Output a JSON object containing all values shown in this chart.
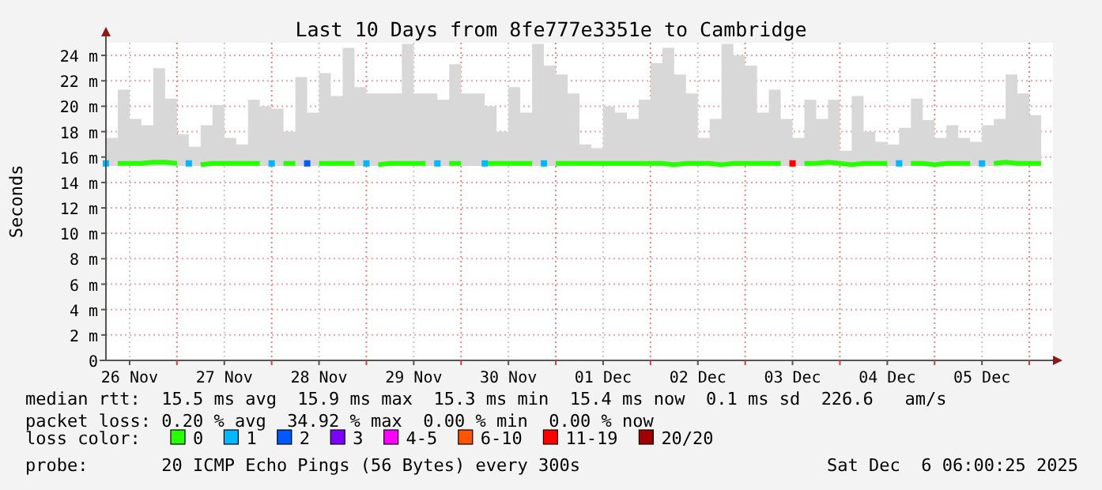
{
  "chart_data": {
    "type": "line",
    "title": "Last 10 Days from 8fe777e3351e to Cambridge",
    "ylabel": "Seconds",
    "x": [
      "2025-11-26T06:00",
      "2025-11-26T09:00",
      "2025-11-26T12:00",
      "2025-11-26T15:00",
      "2025-11-26T18:00",
      "2025-11-26T21:00",
      "2025-11-27T00:00",
      "2025-11-27T03:00",
      "2025-11-27T06:00",
      "2025-11-27T09:00",
      "2025-11-27T12:00",
      "2025-11-27T15:00",
      "2025-11-27T18:00",
      "2025-11-27T21:00",
      "2025-11-28T00:00",
      "2025-11-28T03:00",
      "2025-11-28T06:00",
      "2025-11-28T09:00",
      "2025-11-28T12:00",
      "2025-11-28T15:00",
      "2025-11-28T18:00",
      "2025-11-28T21:00",
      "2025-11-29T00:00",
      "2025-11-29T03:00",
      "2025-11-29T06:00",
      "2025-11-29T09:00",
      "2025-11-29T12:00",
      "2025-11-29T15:00",
      "2025-11-29T18:00",
      "2025-11-29T21:00",
      "2025-11-30T00:00",
      "2025-11-30T03:00",
      "2025-11-30T06:00",
      "2025-11-30T09:00",
      "2025-11-30T12:00",
      "2025-11-30T15:00",
      "2025-11-30T18:00",
      "2025-11-30T21:00",
      "2025-12-01T00:00",
      "2025-12-01T03:00",
      "2025-12-01T06:00",
      "2025-12-01T09:00",
      "2025-12-01T12:00",
      "2025-12-01T15:00",
      "2025-12-01T18:00",
      "2025-12-01T21:00",
      "2025-12-02T00:00",
      "2025-12-02T03:00",
      "2025-12-02T06:00",
      "2025-12-02T09:00",
      "2025-12-02T12:00",
      "2025-12-02T15:00",
      "2025-12-02T18:00",
      "2025-12-02T21:00",
      "2025-12-03T00:00",
      "2025-12-03T03:00",
      "2025-12-03T06:00",
      "2025-12-03T09:00",
      "2025-12-03T12:00",
      "2025-12-03T15:00",
      "2025-12-03T18:00",
      "2025-12-03T21:00",
      "2025-12-04T00:00",
      "2025-12-04T03:00",
      "2025-12-04T06:00",
      "2025-12-04T09:00",
      "2025-12-04T12:00",
      "2025-12-04T15:00",
      "2025-12-04T18:00",
      "2025-12-04T21:00",
      "2025-12-05T00:00",
      "2025-12-05T03:00",
      "2025-12-05T06:00",
      "2025-12-05T09:00",
      "2025-12-05T12:00",
      "2025-12-05T15:00",
      "2025-12-05T18:00",
      "2025-12-05T21:00",
      "2025-12-06T00:00",
      "2025-12-06T03:00"
    ],
    "series": [
      {
        "name": "0",
        "color": "#26ff00",
        "values": [
          null,
          15.5,
          15.5,
          15.5,
          15.6,
          15.6,
          15.5,
          null,
          15.4,
          15.5,
          15.5,
          15.5,
          15.5,
          15.5,
          null,
          15.5,
          15.5,
          null,
          15.5,
          15.5,
          15.5,
          15.5,
          null,
          15.4,
          15.5,
          15.5,
          15.5,
          15.5,
          null,
          15.5,
          15.5,
          null,
          15.5,
          15.5,
          15.5,
          15.5,
          15.5,
          null,
          15.5,
          15.5,
          15.5,
          15.5,
          15.5,
          15.5,
          15.5,
          15.5,
          15.5,
          15.5,
          15.4,
          15.5,
          15.5,
          15.5,
          15.4,
          15.5,
          15.5,
          15.5,
          15.5,
          15.5,
          null,
          15.5,
          15.5,
          15.6,
          15.5,
          15.4,
          15.5,
          15.5,
          15.5,
          null,
          15.5,
          15.5,
          15.4,
          15.5,
          15.5,
          15.5,
          null,
          15.5,
          15.6,
          15.5,
          15.5,
          15.5
        ],
        "lower": [
          15.3,
          15.3,
          15.3,
          15.3,
          15.3,
          15.3,
          15.3,
          15.3,
          15.3,
          15.3,
          15.3,
          15.3,
          15.3,
          15.3,
          15.3,
          15.3,
          15.3,
          15.3,
          15.3,
          15.3,
          15.3,
          15.3,
          15.3,
          15.3,
          15.3,
          15.3,
          15.3,
          15.3,
          15.3,
          15.3,
          15.3,
          15.3,
          15.3,
          15.3,
          15.3,
          15.3,
          15.3,
          15.3,
          15.3,
          15.3,
          15.3,
          15.3,
          15.3,
          15.3,
          15.3,
          15.3,
          15.3,
          15.3,
          15.3,
          15.3,
          15.3,
          15.3,
          15.3,
          15.3,
          15.3,
          15.3,
          15.3,
          15.3,
          15.3,
          15.3,
          15.3,
          15.3,
          15.3,
          15.3,
          15.3,
          15.3,
          15.3,
          15.3,
          15.3,
          15.3,
          15.3,
          15.3,
          15.3,
          15.3,
          15.3,
          15.3,
          15.3,
          15.3,
          15.3,
          15.3
        ],
        "upper": [
          17.5,
          21.3,
          19,
          18.5,
          23,
          20.6,
          17.8,
          16.8,
          18.5,
          20.1,
          17.5,
          17,
          20.5,
          20,
          19.8,
          18,
          22.3,
          19.5,
          22.6,
          20.8,
          24.6,
          21.5,
          21,
          21,
          21,
          24.9,
          21,
          21,
          20.5,
          23.3,
          21,
          21,
          20,
          18,
          21.5,
          19.5,
          24.9,
          23.2,
          22.5,
          21,
          17,
          16.7,
          20,
          19.5,
          19,
          20.5,
          23.4,
          24.6,
          22.5,
          21,
          17.5,
          19,
          24.9,
          24,
          23.2,
          19.5,
          21.3,
          19,
          17.5,
          20.5,
          19,
          20.5,
          16.5,
          20.8,
          18,
          17.2,
          17,
          18.3,
          20.6,
          18.9,
          17.5,
          18.5,
          17.5,
          17.2,
          18.5,
          19,
          22.5,
          21,
          19.3,
          18.5
        ]
      },
      {
        "name": "1",
        "color": "#00b8ff",
        "type": "scatter",
        "marker": "square",
        "x": [
          "2025-11-26T06:00",
          "2025-11-27T03:00",
          "2025-11-28T00:00",
          "2025-11-29T00:00",
          "2025-11-29T18:00",
          "2025-11-30T06:00",
          "2025-11-30T21:00",
          "2025-12-04T15:00",
          "2025-12-05T12:00"
        ],
        "values": [
          15.5,
          15.5,
          15.5,
          15.5,
          15.5,
          15.5,
          15.5,
          15.5,
          15.5
        ]
      },
      {
        "name": "2",
        "color": "#0059ff",
        "type": "scatter",
        "marker": "square",
        "x": [
          "2025-11-28T09:00"
        ],
        "values": [
          15.5
        ]
      },
      {
        "name": "3",
        "color": "#7e00ff",
        "type": "scatter",
        "values": [
          null,
          null,
          null,
          null,
          null,
          null,
          null,
          null,
          null,
          null,
          null,
          null,
          null,
          null,
          null,
          null,
          null,
          null,
          null,
          null,
          null,
          null,
          null,
          null,
          null,
          null,
          null,
          null,
          null,
          null,
          null,
          null,
          null,
          null,
          null,
          null,
          null,
          null,
          null,
          null,
          null,
          null,
          null,
          null,
          null,
          null,
          null,
          null,
          null,
          null,
          null,
          null,
          null,
          null,
          null,
          null,
          null,
          null,
          null,
          null,
          null,
          null,
          null,
          null,
          null,
          null,
          null,
          null,
          null,
          null,
          null,
          null,
          null,
          null,
          null,
          null,
          null,
          null,
          null,
          null
        ]
      },
      {
        "name": "4-5",
        "color": "#ff00ff",
        "type": "scatter",
        "values": [
          null,
          null,
          null,
          null,
          null,
          null,
          null,
          null,
          null,
          null,
          null,
          null,
          null,
          null,
          null,
          null,
          null,
          null,
          null,
          null,
          null,
          null,
          null,
          null,
          null,
          null,
          null,
          null,
          null,
          null,
          null,
          null,
          null,
          null,
          null,
          null,
          null,
          null,
          null,
          null,
          null,
          null,
          null,
          null,
          null,
          null,
          null,
          null,
          null,
          null,
          null,
          null,
          null,
          null,
          null,
          null,
          null,
          null,
          null,
          null,
          null,
          null,
          null,
          null,
          null,
          null,
          null,
          null,
          null,
          null,
          null,
          null,
          null,
          null,
          null,
          null,
          null,
          null,
          null,
          null
        ]
      },
      {
        "name": "6-10",
        "color": "#ff5500",
        "type": "scatter",
        "values": [
          null,
          null,
          null,
          null,
          null,
          null,
          null,
          null,
          null,
          null,
          null,
          null,
          null,
          null,
          null,
          null,
          null,
          null,
          null,
          null,
          null,
          null,
          null,
          null,
          null,
          null,
          null,
          null,
          null,
          null,
          null,
          null,
          null,
          null,
          null,
          null,
          null,
          null,
          null,
          null,
          null,
          null,
          null,
          null,
          null,
          null,
          null,
          null,
          null,
          null,
          null,
          null,
          null,
          null,
          null,
          null,
          null,
          null,
          null,
          null,
          null,
          null,
          null,
          null,
          null,
          null,
          null,
          null,
          null,
          null,
          null,
          null,
          null,
          null,
          null,
          null,
          null,
          null,
          null,
          null
        ]
      },
      {
        "name": "11-19",
        "color": "#ff0000",
        "type": "scatter",
        "marker": "square",
        "x": [
          "2025-12-03T12:00"
        ],
        "values": [
          15.5
        ]
      },
      {
        "name": "20/20",
        "color": "#a10000",
        "type": "scatter",
        "values": [
          null,
          null,
          null,
          null,
          null,
          null,
          null,
          null,
          null,
          null,
          null,
          null,
          null,
          null,
          null,
          null,
          null,
          null,
          null,
          null,
          null,
          null,
          null,
          null,
          null,
          null,
          null,
          null,
          null,
          null,
          null,
          null,
          null,
          null,
          null,
          null,
          null,
          null,
          null,
          null,
          null,
          null,
          null,
          null,
          null,
          null,
          null,
          null,
          null,
          null,
          null,
          null,
          null,
          null,
          null,
          null,
          null,
          null,
          null,
          null,
          null,
          null,
          null,
          null,
          null,
          null,
          null,
          null,
          null,
          null,
          null,
          null,
          null,
          null,
          null,
          null,
          null,
          null,
          null,
          null
        ]
      }
    ],
    "legend": "bottom",
    "legend_title": "loss color:",
    "grid": true,
    "xlim": [
      "2025-11-26T06:00",
      "2025-12-06T06:00"
    ],
    "xticks": [
      {
        "value": "2025-11-26T12:00",
        "label": "26 Nov"
      },
      {
        "value": "2025-11-27T00:00",
        "label": null
      },
      {
        "value": "2025-11-27T12:00",
        "label": "27 Nov"
      },
      {
        "value": "2025-11-28T00:00",
        "label": null
      },
      {
        "value": "2025-11-28T12:00",
        "label": "28 Nov"
      },
      {
        "value": "2025-11-29T00:00",
        "label": null
      },
      {
        "value": "2025-11-29T12:00",
        "label": "29 Nov"
      },
      {
        "value": "2025-11-30T00:00",
        "label": null
      },
      {
        "value": "2025-11-30T12:00",
        "label": "30 Nov"
      },
      {
        "value": "2025-12-01T00:00",
        "label": null
      },
      {
        "value": "2025-12-01T12:00",
        "label": "01 Dec"
      },
      {
        "value": "2025-12-02T00:00",
        "label": null
      },
      {
        "value": "2025-12-02T12:00",
        "label": "02 Dec"
      },
      {
        "value": "2025-12-03T00:00",
        "label": null
      },
      {
        "value": "2025-12-03T12:00",
        "label": "03 Dec"
      },
      {
        "value": "2025-12-04T00:00",
        "label": null
      },
      {
        "value": "2025-12-04T12:00",
        "label": "04 Dec"
      },
      {
        "value": "2025-12-05T00:00",
        "label": null
      },
      {
        "value": "2025-12-05T12:00",
        "label": "05 Dec"
      },
      {
        "value": "2025-12-06T00:00",
        "label": null
      }
    ],
    "ylim": [
      0,
      25
    ],
    "yticks": [
      0,
      {
        "value": 2,
        "label": "2 m"
      },
      {
        "value": 4,
        "label": "4 m"
      },
      {
        "value": 6,
        "label": "6 m"
      },
      {
        "value": 8,
        "label": "8 m"
      },
      {
        "value": 10,
        "label": "10 m"
      },
      {
        "value": 12,
        "label": "12 m"
      },
      {
        "value": 14,
        "label": "14 m"
      },
      {
        "value": 16,
        "label": "16 m"
      },
      {
        "value": 18,
        "label": "18 m"
      },
      {
        "value": 20,
        "label": "20 m"
      },
      {
        "value": 22,
        "label": "22 m"
      },
      {
        "value": 24,
        "label": "24 m"
      }
    ],
    "annotations": [
      "median rtt:  15.5 ms avg  15.9 ms max  15.3 ms min  15.4 ms now  0.1 ms sd  226.6   am/s",
      "packet loss: 0.20 % avg  34.92 % max  0.00 % min  0.00 % now",
      "probe:       20 ICMP Echo Pings (56 Bytes) every 300s",
      "Sat Dec  6 06:00:25 2025"
    ]
  }
}
